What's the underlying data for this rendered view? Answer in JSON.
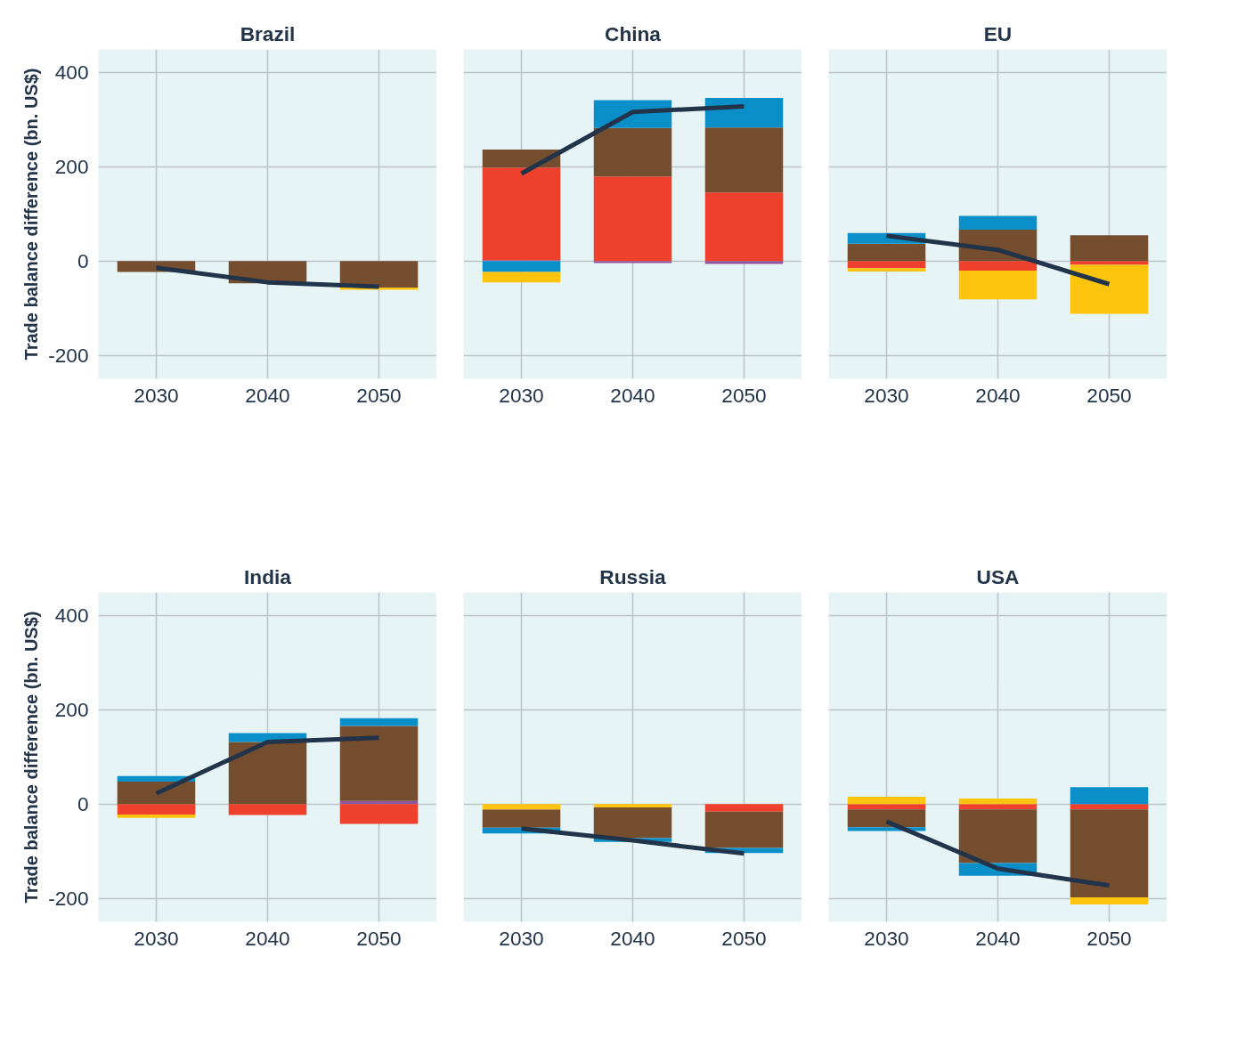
{
  "chart_data": [
    {
      "type": "bar",
      "title": "Brazil",
      "ylabel": "Trade balance difference (bn. US$)",
      "categories": [
        "2030",
        "2040",
        "2050"
      ],
      "ylim": [
        -250,
        450
      ],
      "yticks": [
        -200,
        0,
        200,
        400
      ],
      "grid": true,
      "series": [
        {
          "color": "#754d2f",
          "values": [
            -23,
            -47,
            -56
          ],
          "base": [
            0,
            0,
            0
          ]
        },
        {
          "color": "#fdc40d",
          "values": [
            null,
            null,
            -5
          ],
          "base": [
            null,
            null,
            -56
          ]
        },
        {
          "type": "line",
          "color": "#22344a",
          "values": [
            -14,
            -45,
            -54
          ]
        }
      ]
    },
    {
      "type": "bar",
      "title": "China",
      "categories": [
        "2030",
        "2040",
        "2050"
      ],
      "ylim": [
        -250,
        450
      ],
      "yticks": [
        -200,
        0,
        200,
        400
      ],
      "grid": true,
      "tick_labels": "x",
      "series": [
        {
          "color": "#8e55a0",
          "values": [
            2,
            -4,
            -6
          ],
          "base": [
            0,
            0,
            0
          ]
        },
        {
          "color": "#ef3f2d",
          "values": [
            197,
            180,
            146
          ],
          "base": [
            2,
            0,
            0
          ]
        },
        {
          "color": "#754d2f",
          "values": [
            38,
            103,
            138
          ],
          "base": [
            199,
            180,
            146
          ]
        },
        {
          "color": "#0a8fc9",
          "values": [
            -23,
            59,
            63
          ],
          "base": [
            0,
            283,
            284
          ]
        },
        {
          "color": "#fdc40d",
          "values": [
            -22,
            null,
            null
          ],
          "base": [
            -23,
            null,
            null
          ]
        },
        {
          "type": "line",
          "color": "#22344a",
          "values": [
            186,
            317,
            329
          ]
        }
      ]
    },
    {
      "type": "bar",
      "title": "EU",
      "categories": [
        "2030",
        "2040",
        "2050"
      ],
      "ylim": [
        -250,
        450
      ],
      "yticks": [
        -200,
        0,
        200,
        400
      ],
      "grid": true,
      "tick_labels": "x",
      "series": [
        {
          "color": "#ef3f2d",
          "values": [
            -15,
            -20,
            -8
          ],
          "base": [
            0,
            0,
            0
          ]
        },
        {
          "color": "#754d2f",
          "values": [
            37,
            67,
            55
          ],
          "base": [
            0,
            0,
            0
          ]
        },
        {
          "color": "#0a8fc9",
          "values": [
            23,
            29,
            null
          ],
          "base": [
            37,
            67,
            null
          ]
        },
        {
          "color": "#fdc40d",
          "values": [
            -7,
            -61,
            -104
          ],
          "base": [
            -15,
            -20,
            -8
          ]
        },
        {
          "type": "line",
          "color": "#22344a",
          "values": [
            54,
            24,
            -49
          ]
        }
      ]
    },
    {
      "type": "bar",
      "title": "India",
      "ylabel": "Trade balance difference (bn. US$)",
      "categories": [
        "2030",
        "2040",
        "2050"
      ],
      "ylim": [
        -250,
        450
      ],
      "yticks": [
        -200,
        0,
        200,
        400
      ],
      "grid": true,
      "series": [
        {
          "color": "#8e55a0",
          "values": [
            null,
            null,
            7
          ],
          "base": [
            null,
            null,
            0
          ]
        },
        {
          "color": "#ef3f2d",
          "values": [
            -22,
            -23,
            -42
          ],
          "base": [
            0,
            0,
            0
          ]
        },
        {
          "color": "#754d2f",
          "values": [
            48,
            132,
            159
          ],
          "base": [
            0,
            0,
            7
          ]
        },
        {
          "color": "#0a8fc9",
          "values": [
            12,
            19,
            17
          ],
          "base": [
            48,
            132,
            166
          ]
        },
        {
          "color": "#fdc40d",
          "values": [
            -7,
            null,
            null
          ],
          "base": [
            -22,
            null,
            null
          ]
        },
        {
          "type": "line",
          "color": "#22344a",
          "values": [
            23,
            132,
            141
          ]
        }
      ]
    },
    {
      "type": "bar",
      "title": "Russia",
      "categories": [
        "2030",
        "2040",
        "2050"
      ],
      "ylim": [
        -250,
        450
      ],
      "yticks": [
        -200,
        0,
        200,
        400
      ],
      "grid": true,
      "tick_labels": "x",
      "series": [
        {
          "color": "#ef3f2d",
          "values": [
            null,
            null,
            -16
          ],
          "base": [
            null,
            null,
            0
          ]
        },
        {
          "color": "#754d2f",
          "values": [
            -39,
            -65,
            -77
          ],
          "base": [
            -11,
            -7,
            -16
          ]
        },
        {
          "color": "#0a8fc9",
          "values": [
            -12,
            -8,
            -11
          ],
          "base": [
            -50,
            -72,
            -93
          ]
        },
        {
          "color": "#fdc40d",
          "values": [
            -11,
            -7,
            null
          ],
          "base": [
            0,
            0,
            null
          ]
        },
        {
          "type": "line",
          "color": "#22344a",
          "values": [
            -52,
            -77,
            -105
          ]
        }
      ]
    },
    {
      "type": "bar",
      "title": "USA",
      "categories": [
        "2030",
        "2040",
        "2050"
      ],
      "ylim": [
        -250,
        450
      ],
      "yticks": [
        -200,
        0,
        200,
        400
      ],
      "grid": true,
      "tick_labels": "x",
      "series": [
        {
          "color": "#ef3f2d",
          "values": [
            -11,
            -11,
            -11
          ],
          "base": [
            0,
            0,
            0
          ]
        },
        {
          "color": "#754d2f",
          "values": [
            -38,
            -114,
            -187
          ],
          "base": [
            -11,
            -11,
            -11
          ]
        },
        {
          "color": "#0a8fc9",
          "values": [
            -8,
            -27,
            36
          ],
          "base": [
            -49,
            -125,
            0
          ]
        },
        {
          "color": "#fdc40d",
          "values": [
            16,
            12,
            -15
          ],
          "base": [
            0,
            0,
            -198
          ]
        },
        {
          "type": "line",
          "color": "#22344a",
          "values": [
            -37,
            -137,
            -173
          ]
        }
      ]
    }
  ]
}
